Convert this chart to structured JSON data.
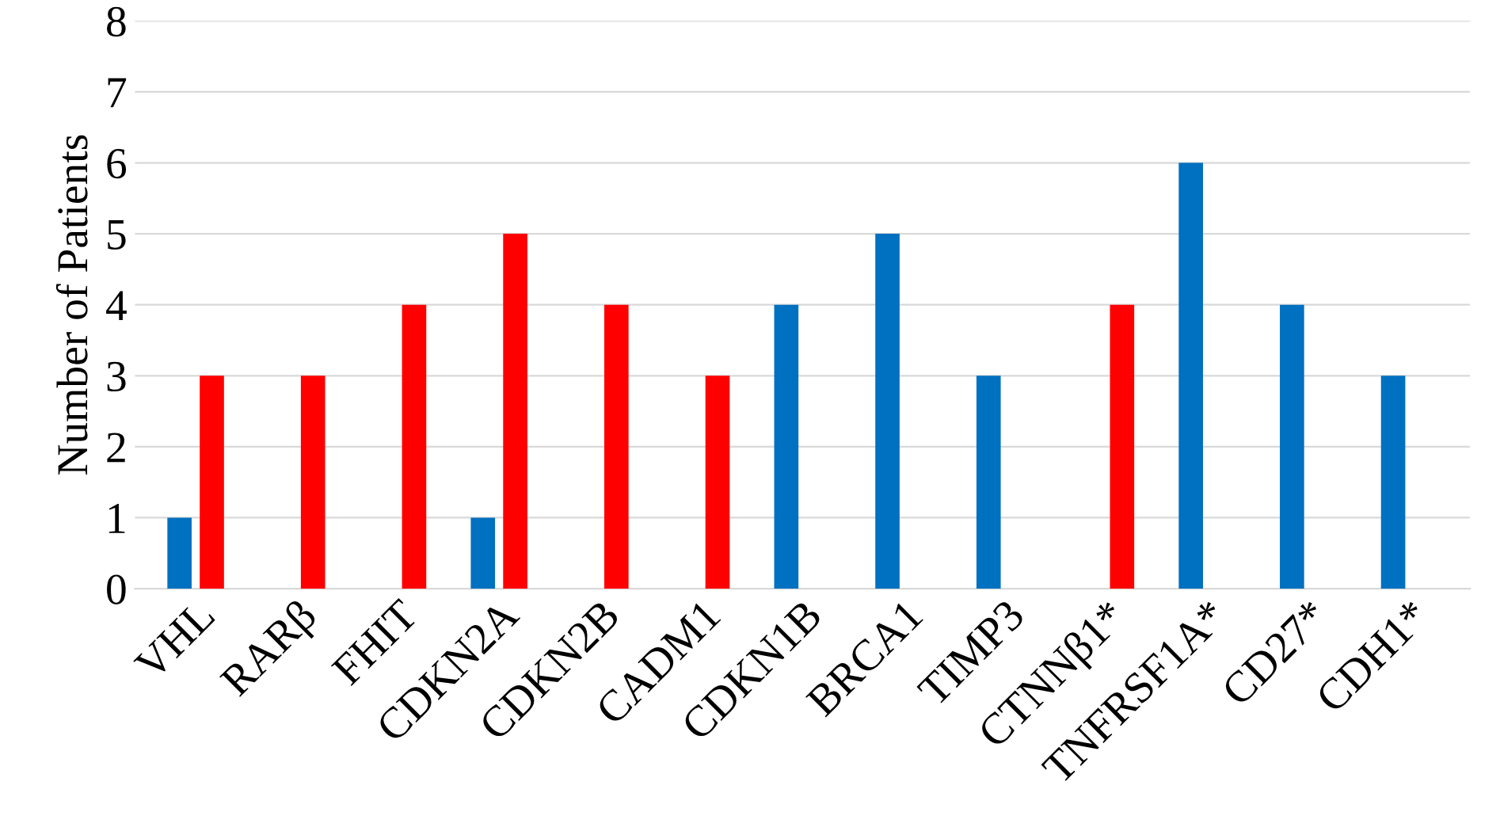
{
  "chart_data": {
    "type": "bar",
    "ylabel": "Number of Patients",
    "categories": [
      "VHL",
      "RARβ",
      "FHIT",
      "CDKN2A",
      "CDKN2B",
      "CADM1",
      "CDKN1B",
      "BRCA1",
      "TIMP3",
      "CTNNβ1*",
      "TNFRSF1A*",
      "CD27*",
      "CDH1*"
    ],
    "series": [
      {
        "color": "#0070c0",
        "values": [
          1,
          0,
          0,
          1,
          0,
          0,
          4,
          5,
          3,
          0,
          6,
          4,
          3
        ]
      },
      {
        "color": "#ff0000",
        "values": [
          3,
          3,
          4,
          5,
          4,
          3,
          0,
          0,
          0,
          4,
          0,
          0,
          0
        ]
      }
    ],
    "ylim": [
      0,
      8
    ],
    "yticks": [
      0,
      1,
      2,
      3,
      4,
      5,
      6,
      7,
      8
    ],
    "grid": "y"
  }
}
